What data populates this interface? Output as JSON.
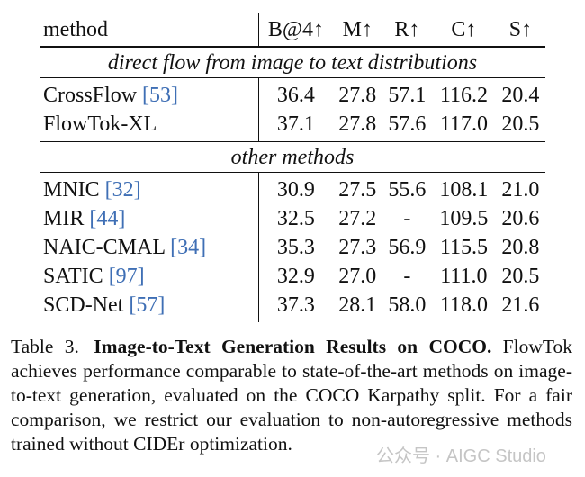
{
  "table": {
    "headers": {
      "method": "method",
      "bleu4": "B@4↑",
      "meteor": "M↑",
      "rouge": "R↑",
      "cider": "C↑",
      "spice": "S↑"
    },
    "sections": [
      {
        "title": "direct flow from image to text distributions",
        "rows": [
          {
            "name": "CrossFlow",
            "cite": "[53]",
            "b4": "36.4",
            "m": "27.8",
            "r": "57.1",
            "c": "116.2",
            "s": "20.4"
          },
          {
            "name": "FlowTok-XL",
            "cite": "",
            "b4": "37.1",
            "m": "27.8",
            "r": "57.6",
            "c": "117.0",
            "s": "20.5"
          }
        ]
      },
      {
        "title": "other methods",
        "rows": [
          {
            "name": "MNIC",
            "cite": "[32]",
            "b4": "30.9",
            "m": "27.5",
            "r": "55.6",
            "c": "108.1",
            "s": "21.0"
          },
          {
            "name": "MIR",
            "cite": "[44]",
            "b4": "32.5",
            "m": "27.2",
            "r": "-",
            "c": "109.5",
            "s": "20.6"
          },
          {
            "name": "NAIC-CMAL",
            "cite": "[34]",
            "b4": "35.3",
            "m": "27.3",
            "r": "56.9",
            "c": "115.5",
            "s": "20.8"
          },
          {
            "name": "SATIC",
            "cite": "[97]",
            "b4": "32.9",
            "m": "27.0",
            "r": "-",
            "c": "111.0",
            "s": "20.5"
          },
          {
            "name": "SCD-Net",
            "cite": "[57]",
            "b4": "37.3",
            "m": "28.1",
            "r": "58.0",
            "c": "118.0",
            "s": "21.6"
          }
        ]
      }
    ]
  },
  "caption": {
    "label": "Table 3.",
    "title": "Image-to-Text Generation Results on COCO.",
    "body": "FlowTok achieves performance comparable to state-of-the-art methods on image-to-text generation, evaluated on the COCO Karpathy split.  For a fair comparison, we restrict our evaluation to non-autoregressive methods trained without CIDEr optimization."
  },
  "watermark": "公众号 · AIGC Studio",
  "colors": {
    "citation": "#3f6fb5",
    "text": "#111111"
  }
}
